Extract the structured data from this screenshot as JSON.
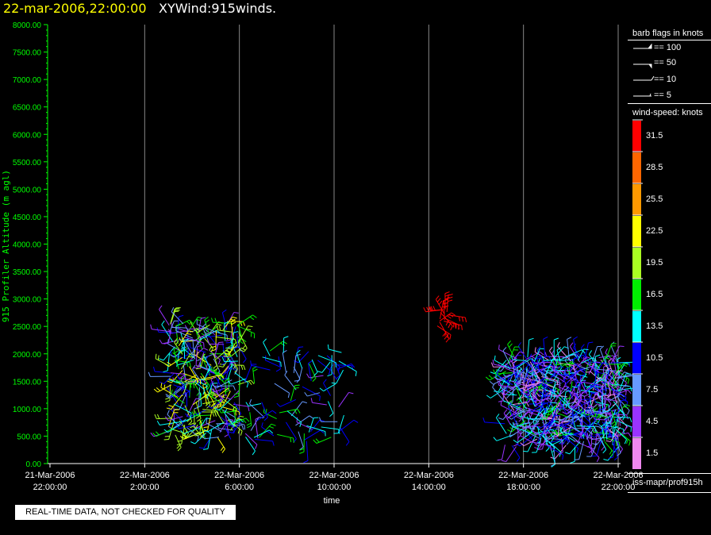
{
  "title": {
    "date": "22-mar-2006,22:00:00",
    "name": "XYWind:915winds."
  },
  "chart_data": {
    "type": "scatter",
    "xlabel": "time",
    "ylabel": "915 Profiler Altitude (m agl)",
    "ylim": [
      0,
      8000
    ],
    "xlim": [
      -0.1,
      24.1
    ],
    "y_ticks": [
      "0.00",
      "500.00",
      "1000.00",
      "1500.00",
      "2000.00",
      "2500.00",
      "3000.00",
      "3500.00",
      "4000.00",
      "4500.00",
      "5000.00",
      "5500.00",
      "6000.00",
      "6500.00",
      "7000.00",
      "7500.00",
      "8000.00"
    ],
    "x_ticks": [
      {
        "hour": 0,
        "date": "21-Mar-2006",
        "time": "22:00:00"
      },
      {
        "hour": 4,
        "date": "22-Mar-2006",
        "time": "2:00:00"
      },
      {
        "hour": 8,
        "date": "22-Mar-2006",
        "time": "6:00:00"
      },
      {
        "hour": 12,
        "date": "22-Mar-2006",
        "time": "10:00:00"
      },
      {
        "hour": 16,
        "date": "22-Mar-2006",
        "time": "14:00:00"
      },
      {
        "hour": 20,
        "date": "22-Mar-2006",
        "time": "18:00:00"
      },
      {
        "hour": 24,
        "date": "22-Mar-2006",
        "time": "22:00:00"
      }
    ],
    "grid": true,
    "clusters": [
      {
        "x": [
          5.0,
          8.0
        ],
        "y": [
          400,
          2600
        ],
        "count": 260,
        "speed": [
          3,
          24
        ]
      },
      {
        "x": [
          8.0,
          12.5
        ],
        "y": [
          400,
          2100
        ],
        "count": 75,
        "speed": [
          4,
          16
        ]
      },
      {
        "x": [
          10.5,
          12.5
        ],
        "y": [
          1700,
          2000
        ],
        "count": 6,
        "speed": [
          8,
          15
        ]
      },
      {
        "x": [
          16.2,
          16.8
        ],
        "y": [
          2500,
          2850
        ],
        "count": 14,
        "speed": [
          31,
          34
        ]
      },
      {
        "x": [
          19.2,
          24.1
        ],
        "y": [
          300,
          1950
        ],
        "count": 560,
        "speed": [
          2,
          16
        ]
      }
    ]
  },
  "barb_legend": {
    "title": "barb flags in knots",
    "items": [
      "== 100",
      "== 50",
      "== 10",
      "== 5"
    ]
  },
  "speed_legend": {
    "title": "wind-speed: knots",
    "levels": [
      {
        "label": "31.5",
        "color": "#ff0000"
      },
      {
        "label": "28.5",
        "color": "#ff6600"
      },
      {
        "label": "25.5",
        "color": "#ff9900"
      },
      {
        "label": "22.5",
        "color": "#ffff00"
      },
      {
        "label": "19.5",
        "color": "#aaff22"
      },
      {
        "label": "16.5",
        "color": "#00ee00"
      },
      {
        "label": "13.5",
        "color": "#00ffff"
      },
      {
        "label": "10.5",
        "color": "#0000ff"
      },
      {
        "label": "7.5",
        "color": "#6699ff"
      },
      {
        "label": "4.5",
        "color": "#9933ff"
      },
      {
        "label": "1.5",
        "color": "#ee88ee"
      }
    ]
  },
  "source": "iss-mapr/prof915h",
  "qc_note": "REAL-TIME DATA, NOT CHECKED FOR QUALITY"
}
